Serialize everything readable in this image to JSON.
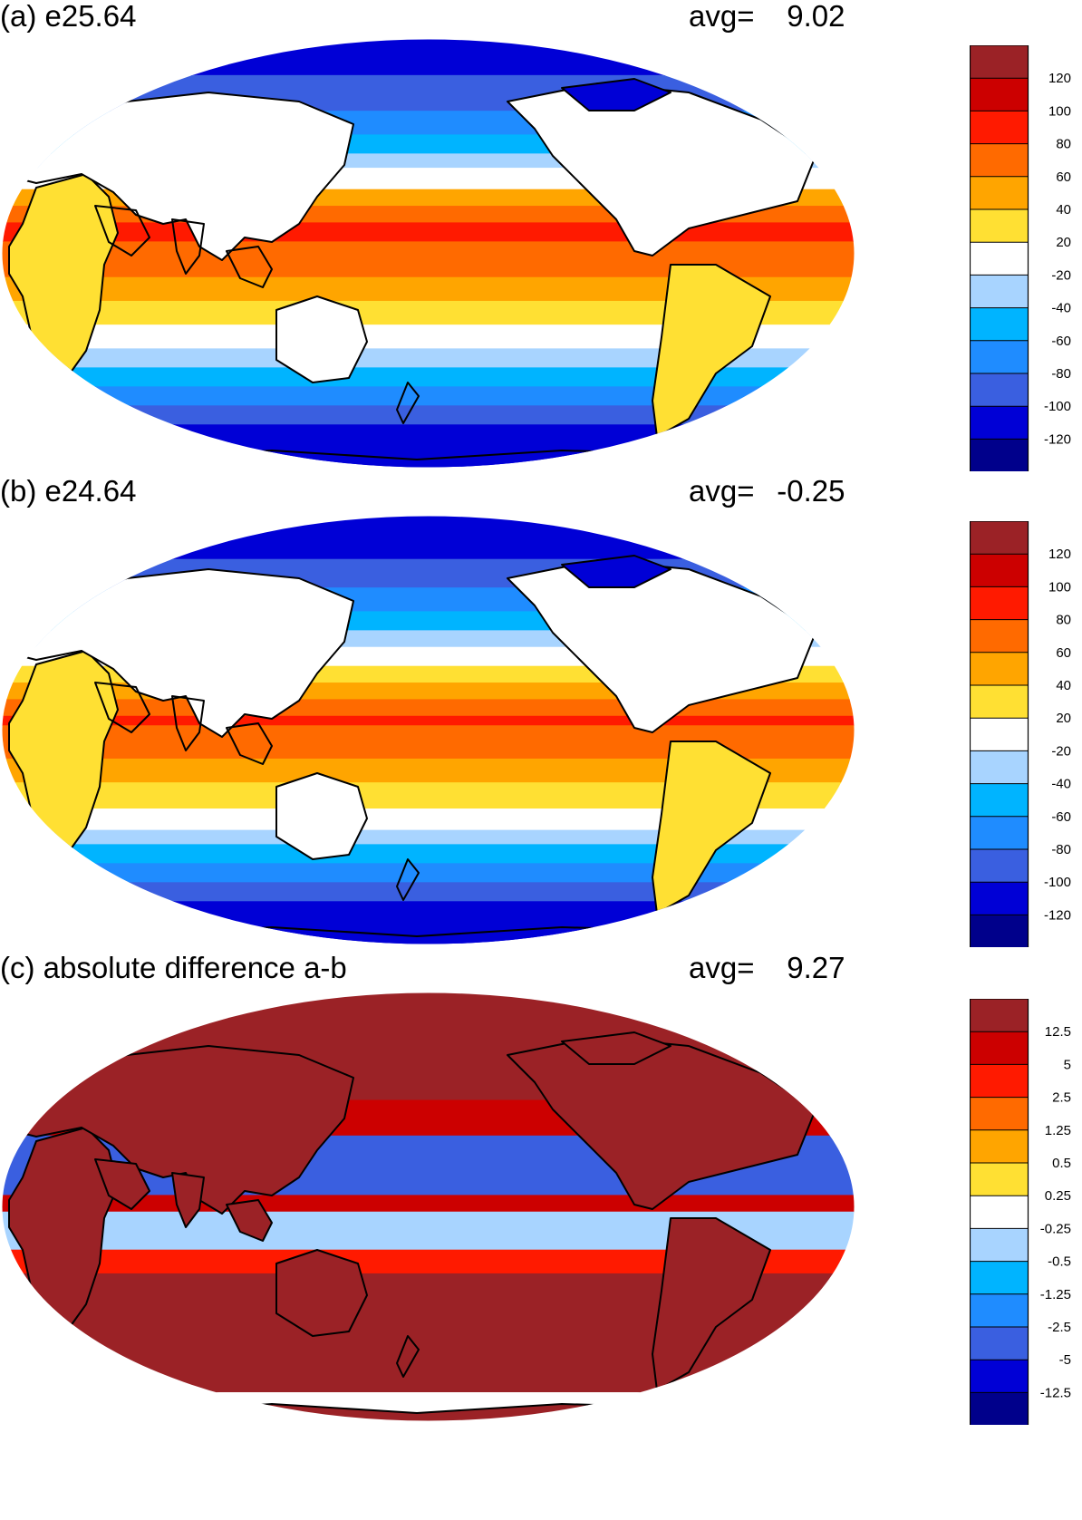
{
  "panels": [
    {
      "title": "(a) e25.64",
      "avg_label": "avg=",
      "avg_value": "9.02",
      "colorbar": {
        "labels": [
          "120",
          "100",
          "80",
          "60",
          "40",
          "20",
          "-20",
          "-40",
          "-60",
          "-80",
          "-100",
          "-120"
        ],
        "colors": [
          "#9b2226",
          "#cc0000",
          "#ff1a00",
          "#ff6a00",
          "#ffa500",
          "#ffe033",
          "#ffffff",
          "#a8d4ff",
          "#00b4ff",
          "#1f8cff",
          "#3a5fe0",
          "#0000d6",
          "#00008b"
        ]
      },
      "pattern": "zonal",
      "zonal_bands": [
        {
          "lat_from": 90,
          "lat_to": 75,
          "color": "#0000d6"
        },
        {
          "lat_from": 75,
          "lat_to": 60,
          "color": "#3a5fe0"
        },
        {
          "lat_from": 60,
          "lat_to": 50,
          "color": "#1f8cff"
        },
        {
          "lat_from": 50,
          "lat_to": 42,
          "color": "#00b4ff"
        },
        {
          "lat_from": 42,
          "lat_to": 36,
          "color": "#a8d4ff"
        },
        {
          "lat_from": 36,
          "lat_to": 27,
          "color": "#ffffff"
        },
        {
          "lat_from": 27,
          "lat_to": 20,
          "color": "#ffa500"
        },
        {
          "lat_from": 20,
          "lat_to": 13,
          "color": "#ff6a00"
        },
        {
          "lat_from": 13,
          "lat_to": 5,
          "color": "#ff1a00"
        },
        {
          "lat_from": 5,
          "lat_to": -10,
          "color": "#ff6a00"
        },
        {
          "lat_from": -10,
          "lat_to": -20,
          "color": "#ffa500"
        },
        {
          "lat_from": -20,
          "lat_to": -30,
          "color": "#ffe033"
        },
        {
          "lat_from": -30,
          "lat_to": -40,
          "color": "#ffffff"
        },
        {
          "lat_from": -40,
          "lat_to": -48,
          "color": "#a8d4ff"
        },
        {
          "lat_from": -48,
          "lat_to": -56,
          "color": "#00b4ff"
        },
        {
          "lat_from": -56,
          "lat_to": -64,
          "color": "#1f8cff"
        },
        {
          "lat_from": -64,
          "lat_to": -72,
          "color": "#3a5fe0"
        },
        {
          "lat_from": -72,
          "lat_to": -90,
          "color": "#0000d6"
        }
      ]
    },
    {
      "title": "(b) e24.64",
      "avg_label": "avg=",
      "avg_value": "-0.25",
      "colorbar": {
        "labels": [
          "120",
          "100",
          "80",
          "60",
          "40",
          "20",
          "-20",
          "-40",
          "-60",
          "-80",
          "-100",
          "-120"
        ],
        "colors": [
          "#9b2226",
          "#cc0000",
          "#ff1a00",
          "#ff6a00",
          "#ffa500",
          "#ffe033",
          "#ffffff",
          "#a8d4ff",
          "#00b4ff",
          "#1f8cff",
          "#3a5fe0",
          "#0000d6",
          "#00008b"
        ]
      },
      "pattern": "zonal",
      "zonal_bands": [
        {
          "lat_from": 90,
          "lat_to": 72,
          "color": "#0000d6"
        },
        {
          "lat_from": 72,
          "lat_to": 60,
          "color": "#3a5fe0"
        },
        {
          "lat_from": 60,
          "lat_to": 50,
          "color": "#1f8cff"
        },
        {
          "lat_from": 50,
          "lat_to": 42,
          "color": "#00b4ff"
        },
        {
          "lat_from": 42,
          "lat_to": 35,
          "color": "#a8d4ff"
        },
        {
          "lat_from": 35,
          "lat_to": 27,
          "color": "#ffffff"
        },
        {
          "lat_from": 27,
          "lat_to": 20,
          "color": "#ffe033"
        },
        {
          "lat_from": 20,
          "lat_to": 13,
          "color": "#ffa500"
        },
        {
          "lat_from": 13,
          "lat_to": 6,
          "color": "#ff6a00"
        },
        {
          "lat_from": 6,
          "lat_to": 2,
          "color": "#ff1a00"
        },
        {
          "lat_from": 2,
          "lat_to": -12,
          "color": "#ff6a00"
        },
        {
          "lat_from": -12,
          "lat_to": -22,
          "color": "#ffa500"
        },
        {
          "lat_from": -22,
          "lat_to": -33,
          "color": "#ffe033"
        },
        {
          "lat_from": -33,
          "lat_to": -42,
          "color": "#ffffff"
        },
        {
          "lat_from": -42,
          "lat_to": -48,
          "color": "#a8d4ff"
        },
        {
          "lat_from": -48,
          "lat_to": -56,
          "color": "#00b4ff"
        },
        {
          "lat_from": -56,
          "lat_to": -64,
          "color": "#1f8cff"
        },
        {
          "lat_from": -64,
          "lat_to": -72,
          "color": "#3a5fe0"
        },
        {
          "lat_from": -72,
          "lat_to": -90,
          "color": "#0000d6"
        }
      ]
    },
    {
      "title": "(c) absolute difference a-b",
      "avg_label": "avg=",
      "avg_value": "9.27",
      "colorbar": {
        "labels": [
          "12.5",
          "5",
          "2.5",
          "1.25",
          "0.5",
          "0.25",
          "-0.25",
          "-0.5",
          "-1.25",
          "-2.5",
          "-5",
          "-12.5"
        ],
        "colors": [
          "#9b2226",
          "#cc0000",
          "#ff1a00",
          "#ff6a00",
          "#ffa500",
          "#ffe033",
          "#ffffff",
          "#a8d4ff",
          "#00b4ff",
          "#1f8cff",
          "#3a5fe0",
          "#0000d6",
          "#00008b"
        ]
      },
      "pattern": "difference",
      "zonal_bands": [
        {
          "lat_from": 90,
          "lat_to": 45,
          "color": "#9b2226"
        },
        {
          "lat_from": 45,
          "lat_to": 30,
          "color": "#cc0000"
        },
        {
          "lat_from": 30,
          "lat_to": 5,
          "color": "#3a5fe0"
        },
        {
          "lat_from": 5,
          "lat_to": -2,
          "color": "#cc0000"
        },
        {
          "lat_from": -2,
          "lat_to": -18,
          "color": "#a8d4ff"
        },
        {
          "lat_from": -18,
          "lat_to": -28,
          "color": "#ff1a00"
        },
        {
          "lat_from": -28,
          "lat_to": -78,
          "color": "#9b2226"
        },
        {
          "lat_from": -78,
          "lat_to": -90,
          "color": "#ffffff"
        }
      ]
    }
  ]
}
